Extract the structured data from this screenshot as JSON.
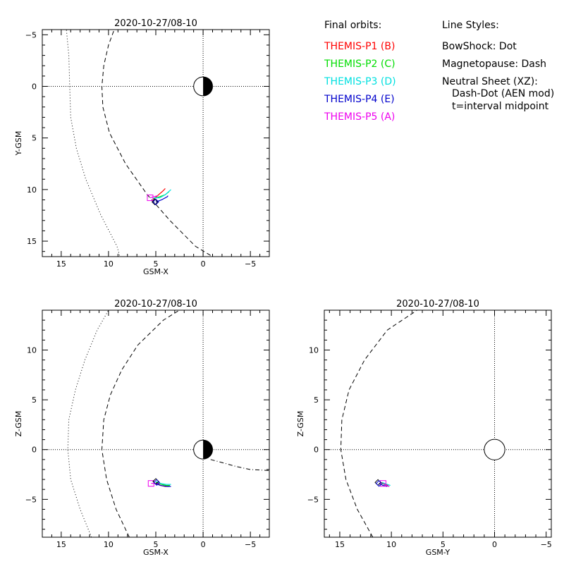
{
  "legend": {
    "orbits_title": "Final orbits:",
    "probes": [
      {
        "label": "THEMIS-P1 (B)",
        "color": "#ff0000"
      },
      {
        "label": "THEMIS-P2 (C)",
        "color": "#00dd00"
      },
      {
        "label": "THEMIS-P3 (D)",
        "color": "#00e0e0"
      },
      {
        "label": "THEMIS-P4 (E)",
        "color": "#0000cc"
      },
      {
        "label": "THEMIS-P5 (A)",
        "color": "#ee00ee"
      }
    ],
    "styles_title": "Line Styles:",
    "styles": [
      "BowShock: Dot",
      "Magnetopause: Dash",
      "Neutral Sheet (XZ):",
      "Dash-Dot (AEN mod)",
      "t=interval midpoint"
    ]
  },
  "chart_data": [
    {
      "type": "scatter",
      "title": "2020-10-27/08-10",
      "xlabel": "GSM-X",
      "ylabel": "Y-GSM",
      "xlim": [
        17,
        -7
      ],
      "ylim": [
        -5.5,
        16.5
      ],
      "y_reversed": true,
      "xticks": [
        15,
        10,
        5,
        0,
        -5
      ],
      "yticks": [
        -5,
        0,
        5,
        10,
        15
      ],
      "bow_shock": [
        [
          14.5,
          -6
        ],
        [
          14.2,
          -3
        ],
        [
          14.1,
          0
        ],
        [
          14.0,
          3
        ],
        [
          13.4,
          6
        ],
        [
          12.4,
          9
        ],
        [
          10.8,
          12.5
        ],
        [
          9.1,
          15.5
        ],
        [
          8.8,
          16.5
        ]
      ],
      "magnetopause": [
        [
          9.2,
          -6
        ],
        [
          10.0,
          -4
        ],
        [
          10.5,
          -2
        ],
        [
          10.7,
          0
        ],
        [
          10.6,
          2
        ],
        [
          9.9,
          4.5
        ],
        [
          8.2,
          7.5
        ],
        [
          5.9,
          10.5
        ],
        [
          3.5,
          13
        ],
        [
          0.8,
          15.5
        ],
        [
          -1,
          16.5
        ]
      ],
      "earth": {
        "x": 0,
        "y": 0,
        "r": 1
      },
      "series": [
        {
          "name": "THEMIS-P1 (B)",
          "color": "#ff0000",
          "points": [
            [
              5.3,
              11.0
            ],
            [
              4.7,
              10.5
            ],
            [
              4.2,
              10.1
            ],
            [
              4.0,
              9.9
            ]
          ]
        },
        {
          "name": "THEMIS-P2 (C)",
          "color": "#00dd00",
          "points": [
            [
              5.3,
              10.9
            ],
            [
              4.6,
              10.7
            ],
            [
              4.0,
              10.5
            ],
            [
              3.6,
              10.2
            ]
          ]
        },
        {
          "name": "THEMIS-P3 (D)",
          "color": "#00e0e0",
          "points": [
            [
              5.2,
              10.8
            ],
            [
              4.6,
              10.8
            ],
            [
              4.0,
              10.5
            ],
            [
              3.4,
              10.0
            ]
          ]
        },
        {
          "name": "THEMIS-P4 (E)",
          "color": "#0000cc",
          "points": [
            [
              5.0,
              11.2
            ],
            [
              4.4,
              11.0
            ],
            [
              3.8,
              10.7
            ],
            [
              3.7,
              10.6
            ]
          ]
        },
        {
          "name": "THEMIS-P5 (A)",
          "color": "#ee00ee",
          "points": [
            [
              5.6,
              10.8
            ],
            [
              5.2,
              10.7
            ],
            [
              4.8,
              10.6
            ]
          ]
        }
      ],
      "markers": [
        {
          "shape": "square",
          "color": "#ee00ee",
          "x": 5.6,
          "y": 10.8
        },
        {
          "shape": "diamond",
          "color": "#000000",
          "x": 5.1,
          "y": 11.2
        },
        {
          "shape": "diamond",
          "color": "#0000cc",
          "x": 5.0,
          "y": 11.2
        }
      ]
    },
    {
      "type": "scatter",
      "title": "2020-10-27/08-10",
      "xlabel": "GSM-X",
      "ylabel": "Z-GSM",
      "xlim": [
        17,
        -7
      ],
      "ylim": [
        -8.8,
        14
      ],
      "y_reversed": false,
      "xticks": [
        15,
        10,
        5,
        0,
        -5
      ],
      "yticks": [
        -5,
        0,
        5,
        10
      ],
      "bow_shock": [
        [
          11.8,
          -8.8
        ],
        [
          13.0,
          -6
        ],
        [
          14.0,
          -3
        ],
        [
          14.3,
          0
        ],
        [
          14.2,
          3
        ],
        [
          13.5,
          6
        ],
        [
          12.5,
          9
        ],
        [
          11.2,
          12
        ],
        [
          10.0,
          14
        ]
      ],
      "magnetopause": [
        [
          7.8,
          -8.8
        ],
        [
          9.2,
          -6
        ],
        [
          10.2,
          -3
        ],
        [
          10.7,
          0
        ],
        [
          10.5,
          3
        ],
        [
          9.8,
          5.5
        ],
        [
          8.6,
          8
        ],
        [
          6.9,
          10.5
        ],
        [
          4.2,
          13
        ],
        [
          2.5,
          14
        ]
      ],
      "neutral_sheet": [
        [
          -0.8,
          -1.0
        ],
        [
          -2.0,
          -1.3
        ],
        [
          -3.5,
          -1.7
        ],
        [
          -5.0,
          -2.0
        ],
        [
          -7.0,
          -2.1
        ]
      ],
      "earth": {
        "x": 0,
        "y": 0,
        "r": 1
      },
      "series": [
        {
          "name": "THEMIS-P1 (B)",
          "color": "#ff0000",
          "points": [
            [
              5.0,
              -3.3
            ],
            [
              4.5,
              -3.6
            ],
            [
              4.0,
              -3.7
            ],
            [
              3.6,
              -3.7
            ]
          ]
        },
        {
          "name": "THEMIS-P2 (C)",
          "color": "#00dd00",
          "points": [
            [
              5.0,
              -3.3
            ],
            [
              4.4,
              -3.5
            ],
            [
              3.9,
              -3.6
            ],
            [
              3.5,
              -3.6
            ]
          ]
        },
        {
          "name": "THEMIS-P3 (D)",
          "color": "#00e0e0",
          "points": [
            [
              5.0,
              -3.2
            ],
            [
              4.5,
              -3.4
            ],
            [
              3.9,
              -3.5
            ],
            [
              3.4,
              -3.5
            ]
          ]
        },
        {
          "name": "THEMIS-P4 (E)",
          "color": "#0000cc",
          "points": [
            [
              5.1,
              -3.4
            ],
            [
              4.5,
              -3.6
            ],
            [
              3.8,
              -3.7
            ],
            [
              3.4,
              -3.7
            ]
          ]
        },
        {
          "name": "THEMIS-P5 (A)",
          "color": "#ee00ee",
          "points": [
            [
              5.5,
              -3.4
            ],
            [
              5.0,
              -3.4
            ],
            [
              4.6,
              -3.4
            ]
          ]
        }
      ],
      "markers": [
        {
          "shape": "square",
          "color": "#ee00ee",
          "x": 5.5,
          "y": -3.4
        },
        {
          "shape": "diamond",
          "color": "#000000",
          "x": 5.0,
          "y": -3.2
        },
        {
          "shape": "diamond",
          "color": "#0000cc",
          "x": 4.9,
          "y": -3.3
        }
      ]
    },
    {
      "type": "scatter",
      "title": "2020-10-27/08-10",
      "xlabel": "GSM-Y",
      "ylabel": "Z-GSM",
      "xlim": [
        16.5,
        -5.5
      ],
      "ylim": [
        -8.8,
        14
      ],
      "y_reversed": false,
      "xticks": [
        15,
        10,
        5,
        0,
        -5
      ],
      "yticks": [
        -5,
        0,
        5,
        10
      ],
      "magnetopause": [
        [
          11.8,
          -8.8
        ],
        [
          13.3,
          -6
        ],
        [
          14.4,
          -3
        ],
        [
          14.9,
          0
        ],
        [
          14.8,
          3
        ],
        [
          14.1,
          6
        ],
        [
          12.6,
          9
        ],
        [
          10.4,
          12
        ],
        [
          7.5,
          14
        ]
      ],
      "earth": {
        "x": 0,
        "y": 0,
        "r": 1
      },
      "series": [
        {
          "name": "THEMIS-P1 (B)",
          "color": "#ff0000",
          "points": [
            [
              11.0,
              -3.3
            ],
            [
              10.6,
              -3.5
            ],
            [
              10.3,
              -3.6
            ]
          ]
        },
        {
          "name": "THEMIS-P2 (C)",
          "color": "#00dd00",
          "points": [
            [
              10.9,
              -3.4
            ],
            [
              10.5,
              -3.6
            ],
            [
              10.2,
              -3.7
            ]
          ]
        },
        {
          "name": "THEMIS-P3 (D)",
          "color": "#00e0e0",
          "points": [
            [
              10.9,
              -3.3
            ],
            [
              10.4,
              -3.5
            ],
            [
              10.1,
              -3.6
            ]
          ]
        },
        {
          "name": "THEMIS-P4 (E)",
          "color": "#0000cc",
          "points": [
            [
              11.2,
              -3.4
            ],
            [
              10.8,
              -3.6
            ],
            [
              10.4,
              -3.7
            ]
          ]
        },
        {
          "name": "THEMIS-P5 (A)",
          "color": "#ee00ee",
          "points": [
            [
              10.8,
              -3.4
            ],
            [
              10.5,
              -3.6
            ],
            [
              10.2,
              -3.7
            ]
          ]
        }
      ],
      "markers": [
        {
          "shape": "square",
          "color": "#ee00ee",
          "x": 10.8,
          "y": -3.4
        },
        {
          "shape": "diamond",
          "color": "#000000",
          "x": 11.3,
          "y": -3.3
        },
        {
          "shape": "diamond",
          "color": "#0000cc",
          "x": 11.2,
          "y": -3.4
        }
      ]
    }
  ]
}
